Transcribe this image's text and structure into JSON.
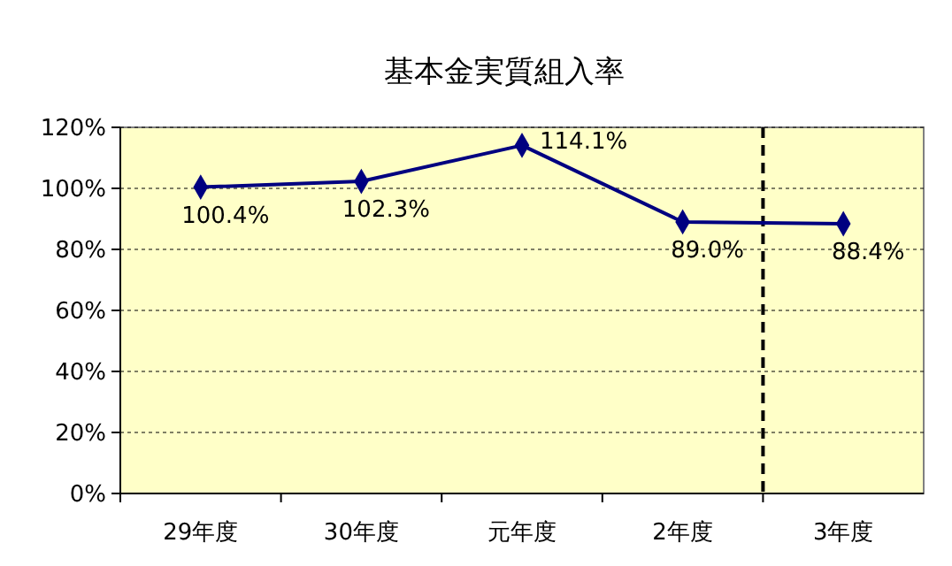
{
  "chart_data": {
    "type": "line",
    "title": "基本金実質組入率",
    "categories": [
      "29年度",
      "30年度",
      "元年度",
      "2年度",
      "3年度"
    ],
    "series": [
      {
        "color": "#000080",
        "values": [
          100.4,
          102.3,
          114.1,
          89.0,
          88.4
        ],
        "value_labels": [
          "100.4%",
          "102.3%",
          "114.1%",
          "89.0%",
          "88.4%"
        ]
      }
    ],
    "ylim": [
      0,
      120
    ],
    "yticks": [
      {
        "value": 0,
        "label": "0%"
      },
      {
        "value": 20,
        "label": "20%"
      },
      {
        "value": 40,
        "label": "40%"
      },
      {
        "value": 60,
        "label": "60%"
      },
      {
        "value": 80,
        "label": "80%"
      },
      {
        "value": 100,
        "label": "100%"
      },
      {
        "value": 120,
        "label": "120%"
      }
    ],
    "grid": "y",
    "marker": "diamond",
    "line_style": "solid"
  }
}
